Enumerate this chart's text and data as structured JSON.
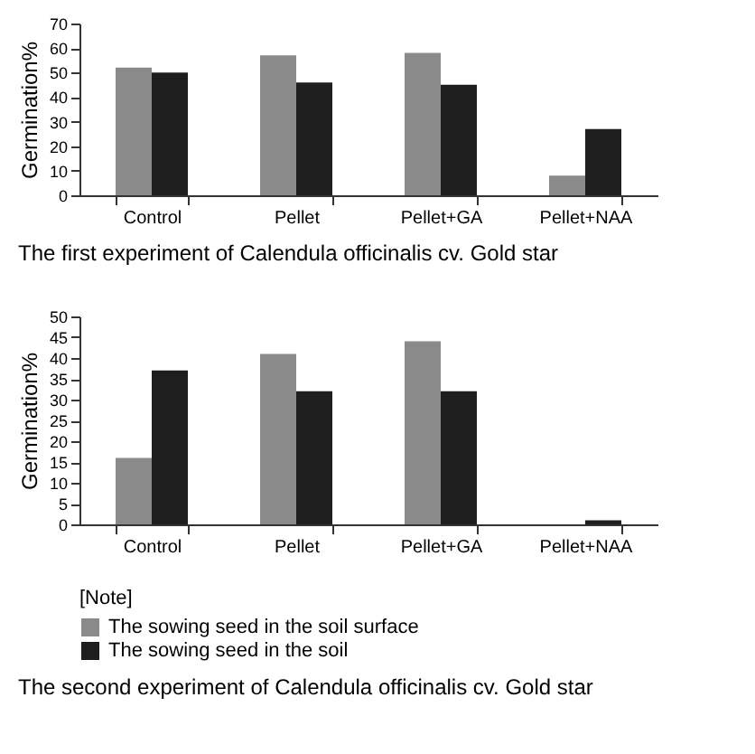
{
  "chart_data": [
    {
      "type": "bar",
      "title": "The first experiment of Calendula officinalis cv. Gold star",
      "ylabel": "Germination%",
      "categories": [
        "Control",
        "Pellet",
        "Pellet+GA",
        "Pellet+NAA"
      ],
      "series": [
        {
          "color": "#8a8a8a",
          "values": [
            52,
            57,
            58,
            8
          ]
        },
        {
          "color": "#1e1e1e",
          "values": [
            50,
            46,
            45,
            27
          ]
        }
      ],
      "ylim": [
        0,
        70
      ],
      "yticks": [
        0,
        10,
        20,
        30,
        40,
        50,
        60,
        70
      ]
    },
    {
      "type": "bar",
      "title": "The second experiment of Calendula officinalis cv. Gold star",
      "ylabel": "Germination%",
      "legend_title": "[Note]",
      "legend": "bottom",
      "categories": [
        "Control",
        "Pellet",
        "Pellet+GA",
        "Pellet+NAA"
      ],
      "series": [
        {
          "name": "The sowing seed in the soil surface",
          "color": "#8a8a8a",
          "values": [
            16,
            41,
            44,
            0
          ]
        },
        {
          "name": "The sowing seed in the soil",
          "color": "#1e1e1e",
          "values": [
            37,
            32,
            32,
            1
          ]
        }
      ],
      "ylim": [
        0,
        50
      ],
      "yticks": [
        0,
        5,
        10,
        15,
        20,
        25,
        30,
        35,
        40,
        45,
        50
      ]
    }
  ]
}
